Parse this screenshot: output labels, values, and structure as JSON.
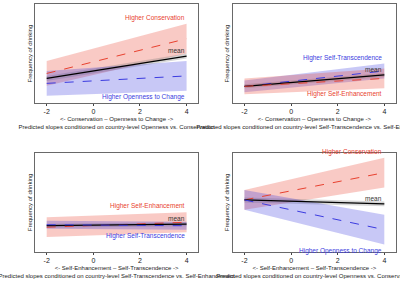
{
  "chart_data": [
    {
      "type": "line",
      "x_label": "<- Conservation – Openness to Change ->",
      "x_sublabel": "Predicted slopes conditioned on country-level Openness vs. Conservation",
      "y_label": "Frequency of drinking",
      "xlim": [
        -2.5,
        4.5
      ],
      "xticks": [
        -2,
        0,
        2,
        4
      ],
      "ylim": [
        -1,
        1
      ],
      "tick_labels": "x",
      "grid": false,
      "series": [
        {
          "name": "Higher Conservation",
          "color": "#e8412f",
          "line_style": "dashed",
          "x": [
            -2,
            4
          ],
          "values": [
            -0.4,
            0.3
          ],
          "ci_lower": [
            -0.65,
            0.0
          ],
          "ci_upper": [
            -0.15,
            0.6
          ]
        },
        {
          "name": "mean",
          "color": "#000000",
          "line_style": "solid",
          "x": [
            -2,
            4
          ],
          "values": [
            -0.5,
            -0.05
          ],
          "ci_lower": [
            -0.55,
            -0.1
          ],
          "ci_upper": [
            -0.45,
            0.0
          ]
        },
        {
          "name": "Higher Openness to Change",
          "color": "#3b3be0",
          "line_style": "dashed",
          "x": [
            -2,
            4
          ],
          "values": [
            -0.6,
            -0.45
          ],
          "ci_lower": [
            -0.85,
            -0.75
          ],
          "ci_upper": [
            -0.35,
            -0.15
          ]
        }
      ]
    },
    {
      "type": "line",
      "x_label": "<- Conservation – Openness to Change ->",
      "x_sublabel": "Predicted slopes conditioned on country-level Self-Transcendence vs. Self-Enhancement",
      "y_label": "Frequency of drinking",
      "xlim": [
        -2.5,
        4.5
      ],
      "xticks": [
        -2,
        0,
        2,
        4
      ],
      "ylim": [
        -1,
        1
      ],
      "tick_labels": "x",
      "grid": false,
      "series": [
        {
          "name": "Higher Self-Transcendence",
          "color": "#3b3be0",
          "line_style": "dashed",
          "x": [
            -2,
            4
          ],
          "values": [
            -0.66,
            -0.35
          ],
          "ci_lower": [
            -0.78,
            -0.5
          ],
          "ci_upper": [
            -0.54,
            -0.2
          ]
        },
        {
          "name": "mean",
          "color": "#000000",
          "line_style": "solid",
          "x": [
            -2,
            4
          ],
          "values": [
            -0.66,
            -0.43
          ],
          "ci_lower": [
            -0.7,
            -0.47
          ],
          "ci_upper": [
            -0.62,
            -0.39
          ]
        },
        {
          "name": "Higher Self-Enhancement",
          "color": "#e8412f",
          "line_style": "dashed",
          "x": [
            -2,
            4
          ],
          "values": [
            -0.66,
            -0.5
          ],
          "ci_lower": [
            -0.82,
            -0.7
          ],
          "ci_upper": [
            -0.5,
            -0.3
          ]
        }
      ]
    },
    {
      "type": "line",
      "x_label": "<- Self-Enhancement – Self-Transcendence ->",
      "x_sublabel": "Predicted slopes conditioned on country-level Self-Transcendence vs. Self-Enhancement",
      "y_label": "Frequency of drinking",
      "xlim": [
        -2.5,
        4.5
      ],
      "xticks": [
        -2,
        0,
        2,
        4
      ],
      "ylim": [
        -1,
        1
      ],
      "tick_labels": "x",
      "grid": false,
      "series": [
        {
          "name": "Higher Self-Enhancement",
          "color": "#e8412f",
          "line_style": "dashed",
          "x": [
            -2,
            4
          ],
          "values": [
            -0.5,
            -0.4
          ],
          "ci_lower": [
            -0.7,
            -0.6
          ],
          "ci_upper": [
            -0.3,
            -0.2
          ]
        },
        {
          "name": "mean",
          "color": "#000000",
          "line_style": "solid",
          "x": [
            -2,
            4
          ],
          "values": [
            -0.47,
            -0.44
          ],
          "ci_lower": [
            -0.51,
            -0.48
          ],
          "ci_upper": [
            -0.43,
            -0.4
          ]
        },
        {
          "name": "Higher Self-Transcendence",
          "color": "#3b3be0",
          "line_style": "dashed",
          "x": [
            -2,
            4
          ],
          "values": [
            -0.45,
            -0.47
          ],
          "ci_lower": [
            -0.53,
            -0.55
          ],
          "ci_upper": [
            -0.37,
            -0.39
          ]
        }
      ]
    },
    {
      "type": "line",
      "x_label": "<- Self-Enhancement – Self-Transcendence ->",
      "x_sublabel": "Predicted slopes conditioned on country-level Openness vs. Conservation",
      "y_label": "Frequency of drinking",
      "xlim": [
        -2.5,
        4.5
      ],
      "xticks": [
        -2,
        0,
        2,
        4
      ],
      "ylim": [
        -1,
        1
      ],
      "tick_labels": "x",
      "grid": false,
      "series": [
        {
          "name": "Higher Conservation",
          "color": "#e8412f",
          "line_style": "dashed",
          "x": [
            -2,
            4
          ],
          "values": [
            0.05,
            0.6
          ],
          "ci_lower": [
            -0.15,
            0.3
          ],
          "ci_upper": [
            0.25,
            0.9
          ]
        },
        {
          "name": "mean",
          "color": "#000000",
          "line_style": "solid",
          "x": [
            -2,
            4
          ],
          "values": [
            0.05,
            -0.03
          ],
          "ci_lower": [
            0.0,
            -0.08
          ],
          "ci_upper": [
            0.1,
            0.02
          ]
        },
        {
          "name": "Higher Openness to Change",
          "color": "#3b3be0",
          "line_style": "dashed",
          "x": [
            -2,
            4
          ],
          "values": [
            0.05,
            -0.55
          ],
          "ci_lower": [
            -0.15,
            -0.85
          ],
          "ci_upper": [
            0.25,
            -0.25
          ]
        }
      ]
    }
  ]
}
